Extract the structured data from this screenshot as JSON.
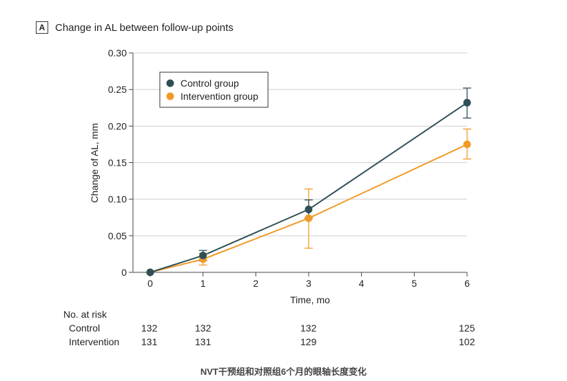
{
  "panel": {
    "letter": "A",
    "title": "Change in AL between follow-up points"
  },
  "chart_data": {
    "type": "line",
    "title": "Change in AL between follow-up points",
    "xlabel": "Time, mo",
    "ylabel": "Change of AL, mm",
    "xlim": [
      0,
      6
    ],
    "ylim": [
      0,
      0.3
    ],
    "x_ticks": [
      0,
      1,
      2,
      3,
      4,
      5,
      6
    ],
    "y_ticks": [
      0,
      0.05,
      0.1,
      0.15,
      0.2,
      0.25,
      0.3
    ],
    "y_tick_labels": [
      "0",
      "0.05",
      "0.10",
      "0.15",
      "0.20",
      "0.25",
      "0.30"
    ],
    "grid": "horizontal",
    "legend_position": "top-left",
    "series": [
      {
        "name": "Control group",
        "color": "#2f4f57",
        "x": [
          0,
          1,
          3,
          6
        ],
        "y": [
          0,
          0.023,
          0.086,
          0.232
        ],
        "err_low": [
          0,
          0.016,
          0.074,
          0.211
        ],
        "err_high": [
          0,
          0.03,
          0.099,
          0.252
        ]
      },
      {
        "name": "Intervention group",
        "color": "#f29a26",
        "x": [
          0,
          1,
          3,
          6
        ],
        "y": [
          0,
          0.018,
          0.074,
          0.175
        ],
        "err_low": [
          0,
          0.01,
          0.033,
          0.155
        ],
        "err_high": [
          0,
          0.026,
          0.114,
          0.196
        ]
      }
    ]
  },
  "risk_table": {
    "header": "No. at risk",
    "rows": [
      {
        "label": "Control",
        "values": [
          "132",
          "132",
          "132",
          "125"
        ]
      },
      {
        "label": "Intervention",
        "values": [
          "131",
          "131",
          "129",
          "102"
        ]
      }
    ]
  },
  "caption": "NVT干预组和对照组6个月的眼轴长度变化"
}
